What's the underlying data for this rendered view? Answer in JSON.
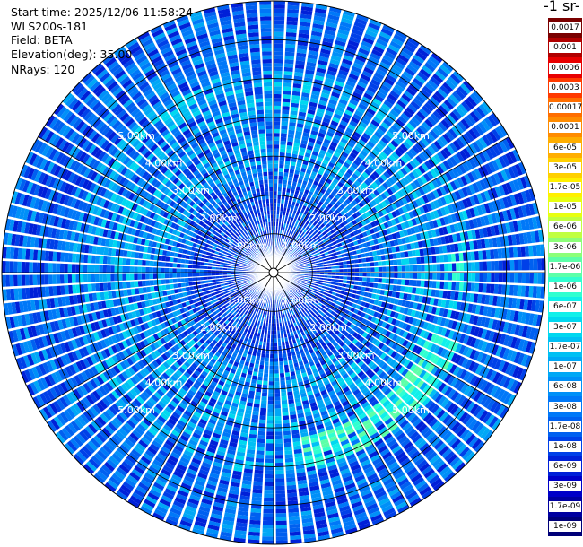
{
  "header": {
    "start_time": "Start time: 2025/12/06 11:58:24",
    "instrument": "WLS200s-181",
    "field": "Field: BETA",
    "elevation": "Elevation(deg): 35.00",
    "nrays": "NRays: 120"
  },
  "colorbar": {
    "title": "-1 sr-",
    "labels": [
      "0.0017",
      "0.001",
      "0.0006",
      "0.0003",
      "0.00017",
      "0.0001",
      "6e-05",
      "3e-05",
      "1.7e-05",
      "1e-05",
      "6e-06",
      "3e-06",
      "1.7e-06",
      "1e-06",
      "6e-07",
      "3e-07",
      "1.7e-07",
      "1e-07",
      "6e-08",
      "3e-08",
      "1.7e-08",
      "1e-08",
      "6e-09",
      "3e-09",
      "1.7e-09",
      "1e-09"
    ],
    "colors": [
      "#7a0000",
      "#b00000",
      "#e80000",
      "#ff3a00",
      "#ff6e00",
      "#ff8c00",
      "#ffae00",
      "#ffd000",
      "#fff000",
      "#e8ff10",
      "#c0ff40",
      "#8cff78",
      "#5cffa8",
      "#30ffd0",
      "#10f0ea",
      "#00d8f0",
      "#00c0f4",
      "#00a8f6",
      "#0090f8",
      "#0078f8",
      "#0060f0",
      "#0040e8",
      "#0020d8",
      "#0000c8",
      "#0000a0",
      "#000078"
    ]
  },
  "chart_data": {
    "type": "heatmap",
    "projection": "polar PPI (plan position indicator)",
    "nrays": 120,
    "elevation_deg": 35.0,
    "field": "BETA",
    "value_scale": "log",
    "value_range": [
      1e-09,
      0.0017
    ],
    "range_rings_km": [
      1,
      2,
      3,
      4,
      5
    ],
    "ring_labels": [
      "1.00km",
      "2.00km",
      "3.00km",
      "4.00km",
      "5.00km"
    ],
    "max_range_km": 7,
    "gridlines_azimuth_deg": [
      0,
      30,
      60,
      90,
      120,
      150,
      180,
      210,
      240,
      270,
      300,
      330
    ],
    "features": [
      {
        "description": "enhanced backscatter arc",
        "azimuth_start_deg": 110,
        "azimuth_end_deg": 170,
        "range_km": [
          4.3,
          5.1
        ],
        "level": "1.7e-06"
      },
      {
        "description": "enhanced backscatter patch",
        "azimuth_deg": 90,
        "range_km": [
          4.5,
          4.9
        ],
        "level": "1e-06"
      },
      {
        "description": "enhanced backscatter patch",
        "azimuth_deg": 330,
        "range_km": [
          4.5,
          5.0
        ],
        "level": "3e-07"
      }
    ]
  }
}
